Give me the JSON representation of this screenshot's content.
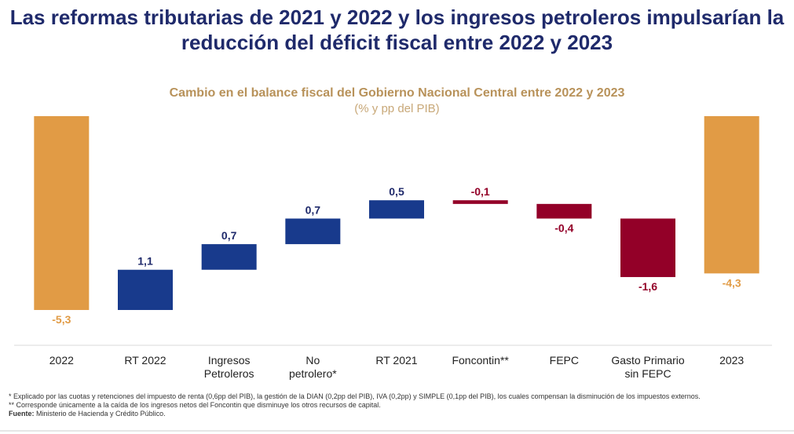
{
  "header": {
    "title_line1": "Las reformas tributarias de 2021 y 2022 y los ingresos petroleros impulsarían la",
    "title_line2": "reducción del déficit fiscal entre 2022 y 2023"
  },
  "chart_data": {
    "type": "bar",
    "subtype": "waterfall",
    "title": "Cambio en el balance fiscal del Gobierno Nacional Central entre 2022 y 2023",
    "subtitle": "(% y pp del PIB)",
    "categories": [
      [
        "2022"
      ],
      [
        "RT 2022"
      ],
      [
        "Ingresos",
        "Petroleros"
      ],
      [
        "No",
        "petrolero*"
      ],
      [
        "RT 2021"
      ],
      [
        "Foncontin**"
      ],
      [
        "FEPC"
      ],
      [
        "Gasto Primario",
        "sin FEPC"
      ],
      [
        "2023"
      ]
    ],
    "values": [
      -5.3,
      1.1,
      0.7,
      0.7,
      0.5,
      -0.1,
      -0.4,
      -1.6,
      -4.3
    ],
    "labels": [
      "-5,3",
      "1,1",
      "0,7",
      "0,7",
      "0,5",
      "-0,1",
      "-0,4",
      "-1,6",
      "-4,3"
    ],
    "bar_kinds": [
      "total",
      "increase",
      "increase",
      "increase",
      "increase",
      "decrease",
      "decrease",
      "decrease",
      "total"
    ],
    "colors": {
      "total": "#e19b45",
      "increase": "#183a8c",
      "decrease": "#930028",
      "total_label": "#e19b45",
      "increase_label": "#1f2a6b",
      "decrease_label": "#930028",
      "axis": "#d9d9d9"
    },
    "grid": false,
    "legend": "none"
  },
  "footnotes": {
    "note1": "* Explicado por las cuotas y retenciones del impuesto de renta (0,6pp del PIB), la gestión de la DIAN (0,2pp del PIB), IVA (0,2pp) y SIMPLE (0,1pp del PIB), los cuales compensan la disminución de los impuestos externos.",
    "note2": "** Corresponde únicamente a la caída de los ingresos netos del Foncontin que disminuye los otros recursos de capital.",
    "source_label": "Fuente:",
    "source_text": " Ministerio de Hacienda y Crédito Público."
  }
}
